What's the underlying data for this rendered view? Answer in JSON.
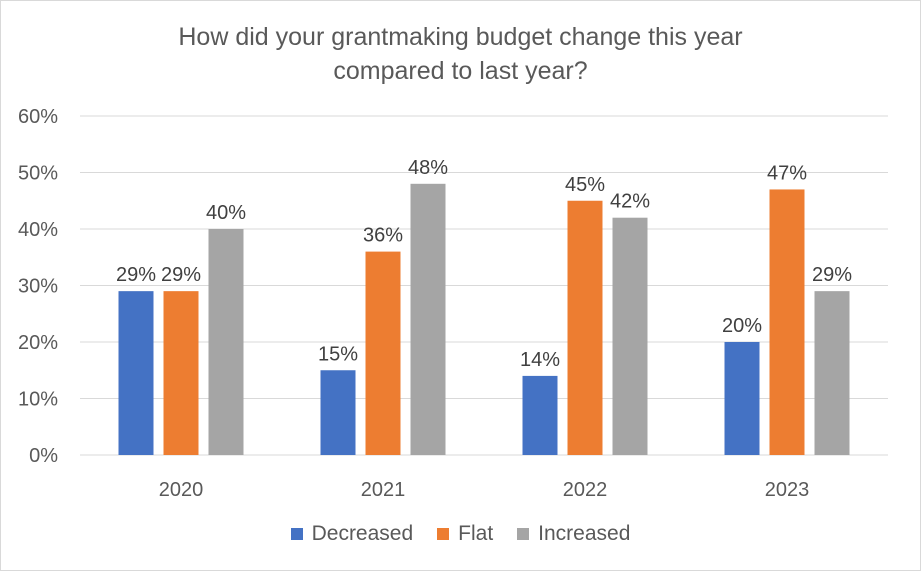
{
  "chart_data": {
    "type": "bar",
    "title_lines": [
      "How did your grantmaking budget change this year",
      "compared to last year?"
    ],
    "categories": [
      "2020",
      "2021",
      "2022",
      "2023"
    ],
    "series": [
      {
        "name": "Decreased",
        "color": "#4472c4",
        "values": [
          29,
          15,
          14,
          20
        ],
        "labels": [
          "29%",
          "15%",
          "14%",
          "20%"
        ]
      },
      {
        "name": "Flat",
        "color": "#ed7d31",
        "values": [
          29,
          36,
          45,
          47
        ],
        "labels": [
          "29%",
          "36%",
          "45%",
          "47%"
        ]
      },
      {
        "name": "Increased",
        "color": "#a5a5a5",
        "values": [
          40,
          48,
          42,
          29
        ],
        "labels": [
          "40%",
          "48%",
          "42%",
          "29%"
        ]
      }
    ],
    "ylim": [
      0,
      60
    ],
    "y_ticks": [
      {
        "value": 0,
        "label": "0%"
      },
      {
        "value": 10,
        "label": "10%"
      },
      {
        "value": 20,
        "label": "20%"
      },
      {
        "value": 30,
        "label": "30%"
      },
      {
        "value": 40,
        "label": "40%"
      },
      {
        "value": 50,
        "label": "50%"
      },
      {
        "value": 60,
        "label": "60%"
      }
    ],
    "grid": true,
    "legend_position": "bottom"
  }
}
